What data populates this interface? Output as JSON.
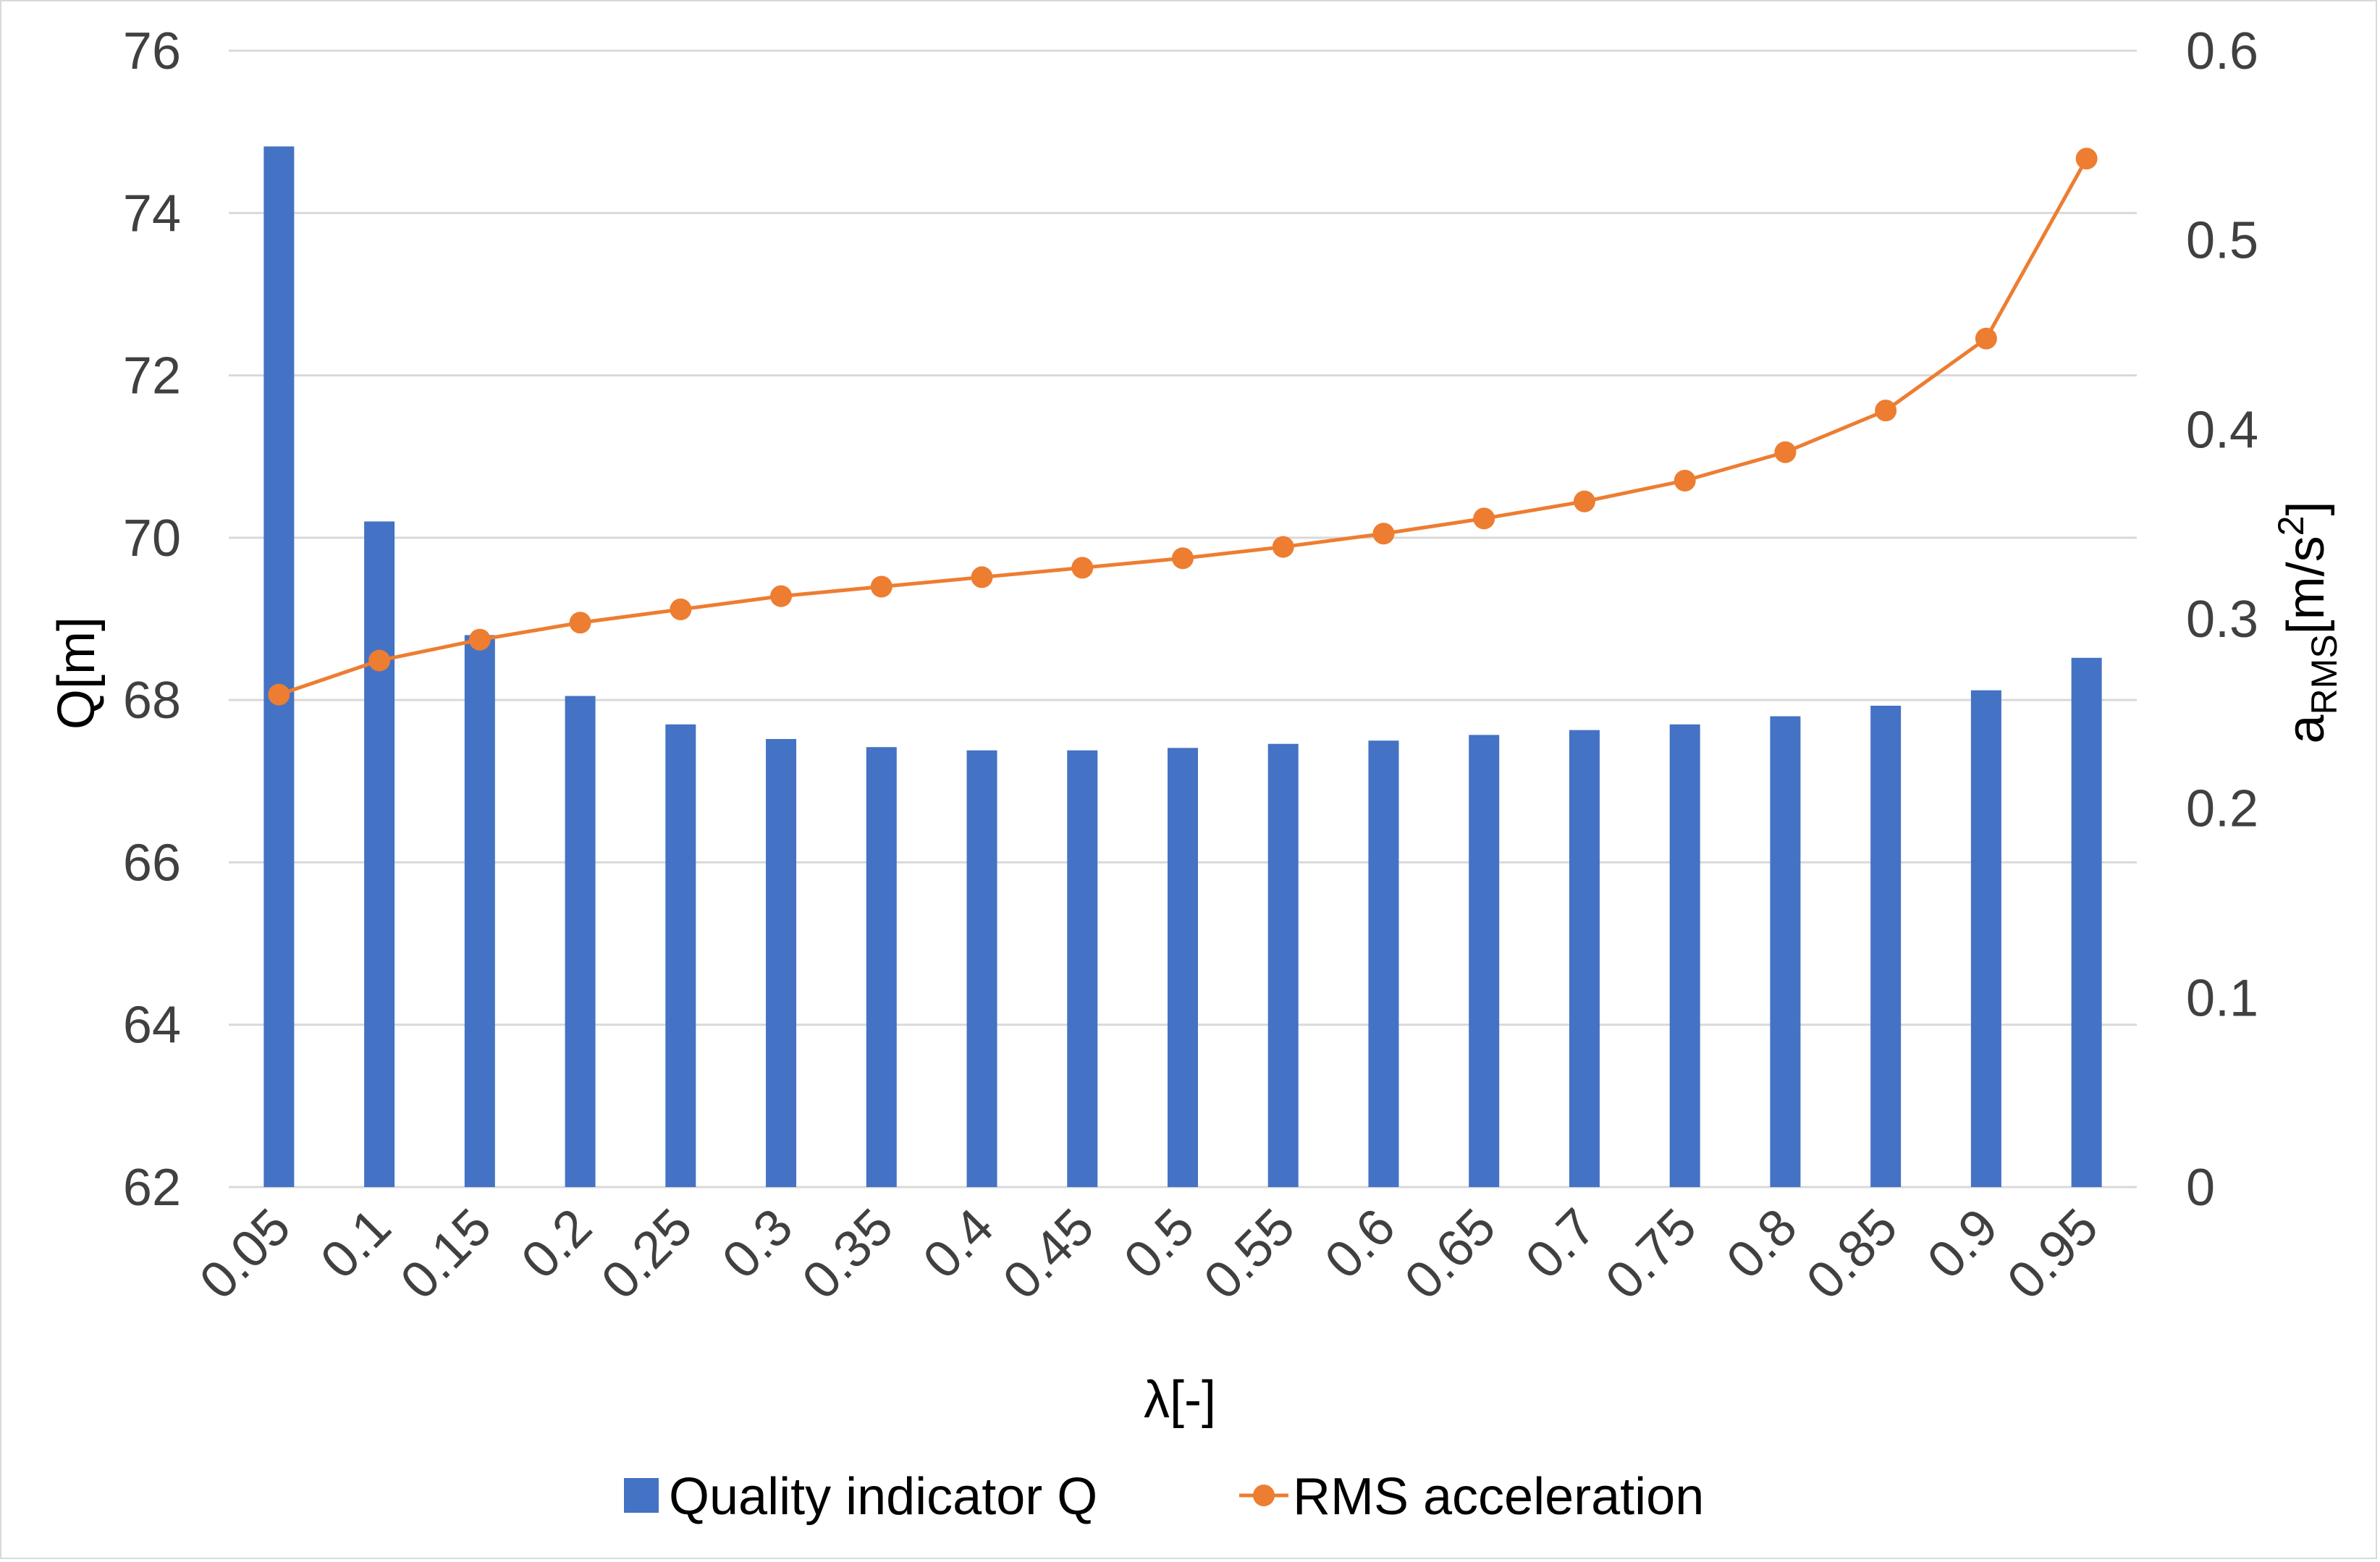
{
  "chart_data": {
    "type": "bar+line",
    "title": "",
    "categories": [
      "0.05",
      "0.1",
      "0.15",
      "0.2",
      "0.25",
      "0.3",
      "0.35",
      "0.4",
      "0.45",
      "0.5",
      "0.55",
      "0.6",
      "0.65",
      "0.7",
      "0.75",
      "0.8",
      "0.85",
      "0.9",
      "0.95"
    ],
    "xlabel": "λ[-]",
    "ylabel_left": "Q[m]",
    "ylabel_right": {
      "base": "a",
      "subscript": "RMS",
      "unit_start": "[m/s",
      "superscript": "2",
      "unit_end": "]"
    },
    "ylim_left": [
      62,
      76
    ],
    "yticks_left": [
      "62",
      "64",
      "66",
      "68",
      "70",
      "72",
      "74",
      "76"
    ],
    "ylim_right": [
      0,
      0.6
    ],
    "yticks_right": [
      "0",
      "0.1",
      "0.2",
      "0.3",
      "0.4",
      "0.5",
      "0.6"
    ],
    "grid": true,
    "legend_position": "bottom",
    "series": [
      {
        "name": "Quality indicator Q",
        "type": "bar",
        "axis": "left",
        "color": "#4472c4",
        "values": [
          74.82,
          70.2,
          68.8,
          68.05,
          67.7,
          67.52,
          67.42,
          67.38,
          67.38,
          67.41,
          67.46,
          67.5,
          67.57,
          67.63,
          67.7,
          67.8,
          67.93,
          68.12,
          68.52
        ]
      },
      {
        "name": "RMS acceleration",
        "type": "line",
        "axis": "right",
        "color": "#ed7d31",
        "values": [
          0.26,
          0.278,
          0.289,
          0.298,
          0.305,
          0.312,
          0.317,
          0.322,
          0.327,
          0.332,
          0.338,
          0.345,
          0.353,
          0.362,
          0.373,
          0.388,
          0.41,
          0.448,
          0.543
        ]
      }
    ]
  }
}
